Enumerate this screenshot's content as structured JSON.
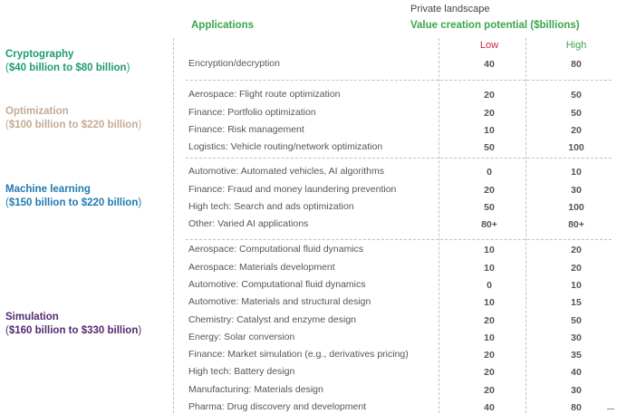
{
  "header": {
    "landscape_label": "Private landscape",
    "applications_label": "Applications",
    "value_label": "Value creation potential ($billions)",
    "low_label": "Low",
    "high_label": "High"
  },
  "colors": {
    "green": "#3aa64a",
    "red": "#d0243a",
    "cryptography": "#1e9c6c",
    "optimization": "#c5ab94",
    "machine_learning": "#1f7bb0",
    "simulation": "#522a72"
  },
  "categories": [
    {
      "name": "Cryptography",
      "range": "$40 billion to $80 billion"
    },
    {
      "name": "Optimization",
      "range": "$100 billion to $220 billion"
    },
    {
      "name": "Machine learning",
      "range": "$150 billion to $220 billion"
    },
    {
      "name": "Simulation",
      "range": "$160 billion to $330 billion"
    }
  ],
  "rows": [
    {
      "app": "Encryption/decryption",
      "low": "40",
      "high": "80"
    },
    {
      "app": "Aerospace: Flight route optimization",
      "low": "20",
      "high": "50"
    },
    {
      "app": "Finance: Portfolio optimization",
      "low": "20",
      "high": "50"
    },
    {
      "app": "Finance: Risk management",
      "low": "10",
      "high": "20"
    },
    {
      "app": "Logistics: Vehicle routing/network optimization",
      "low": "50",
      "high": "100"
    },
    {
      "app": "Automotive: Automated vehicles, AI algorithms",
      "low": "0",
      "high": "10"
    },
    {
      "app": "Finance: Fraud and money laundering prevention",
      "low": "20",
      "high": "30"
    },
    {
      "app": "High tech: Search and ads optimization",
      "low": "50",
      "high": "100"
    },
    {
      "app": "Other: Varied AI applications",
      "low": "80+",
      "high": "80+"
    },
    {
      "app": "Aerospace: Computational fluid dynamics",
      "low": "10",
      "high": "20"
    },
    {
      "app": "Aerospace: Materials development",
      "low": "10",
      "high": "20"
    },
    {
      "app": "Automotive: Computational fluid dynamics",
      "low": "0",
      "high": "10"
    },
    {
      "app": "Automotive: Materials and structural design",
      "low": "10",
      "high": "15"
    },
    {
      "app": "Chemistry: Catalyst and enzyme design",
      "low": "20",
      "high": "50"
    },
    {
      "app": "Energy: Solar conversion",
      "low": "10",
      "high": "30"
    },
    {
      "app": "Finance: Market simulation (e.g., derivatives pricing)",
      "low": "20",
      "high": "35"
    },
    {
      "app": "High tech: Battery design",
      "low": "20",
      "high": "40"
    },
    {
      "app": "Manufacturing: Materials design",
      "low": "20",
      "high": "30"
    },
    {
      "app": "Pharma: Drug discovery and development",
      "low": "40",
      "high": "80"
    }
  ]
}
